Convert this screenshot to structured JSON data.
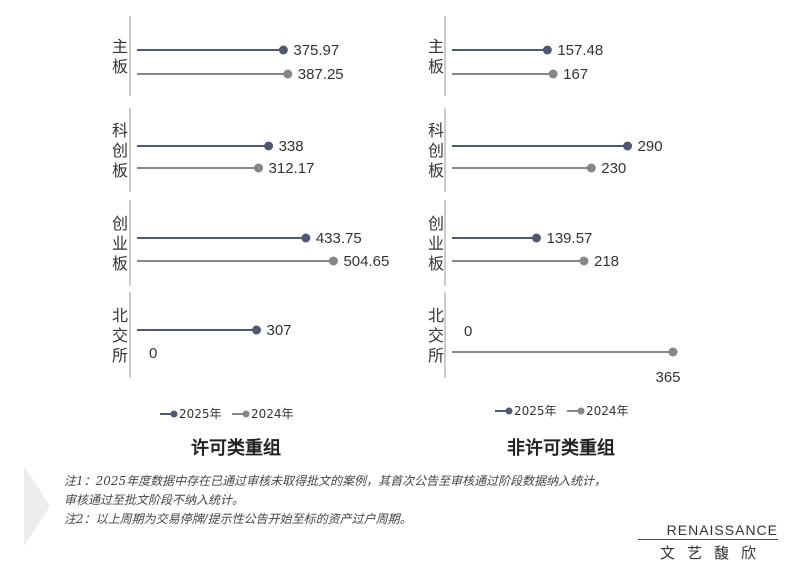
{
  "chart_data": [
    {
      "type": "lollipop",
      "title": "许可类重组",
      "categories": [
        "主板",
        "科创板",
        "创业板",
        "北交所"
      ],
      "series": [
        {
          "name": "2025年",
          "values": [
            375.97,
            338,
            433.75,
            307
          ],
          "labels": [
            "375.97",
            "338",
            "433.75",
            "307"
          ]
        },
        {
          "name": "2024年",
          "values": [
            387.25,
            312.17,
            504.65,
            0
          ],
          "labels": [
            "387.25",
            "312.17",
            "504.65",
            "0"
          ]
        }
      ],
      "xlim": [
        0,
        560
      ],
      "legend_position": "bottom"
    },
    {
      "type": "lollipop",
      "title": "非许可类重组",
      "categories": [
        "主板",
        "科创板",
        "创业板",
        "北交所"
      ],
      "series": [
        {
          "name": "2025年",
          "values": [
            157.48,
            290,
            139.57,
            0
          ],
          "labels": [
            "157.48",
            "290",
            "139.57",
            "0"
          ]
        },
        {
          "name": "2024年",
          "values": [
            167,
            230,
            218,
            365
          ],
          "labels": [
            "167",
            "230",
            "218",
            "365"
          ]
        }
      ],
      "xlim": [
        0,
        365
      ],
      "legend_position": "bottom"
    }
  ],
  "colors": {
    "series_2025": "#4f5870",
    "series_2024": "#8a8686",
    "axis": "#999999"
  },
  "notes": [
    "注1：2025年度数据中存在已通过审核未取得批文的案例，其首次公告至审核通过阶段数据纳入统计，",
    "审核通过至批文阶段不纳入统计。",
    "注2：以上周期为交易停牌/提示性公告开始至标的资产过户周期。"
  ],
  "logo": {
    "english": "RENAISSANCE",
    "chinese": "文艺馥欣"
  }
}
